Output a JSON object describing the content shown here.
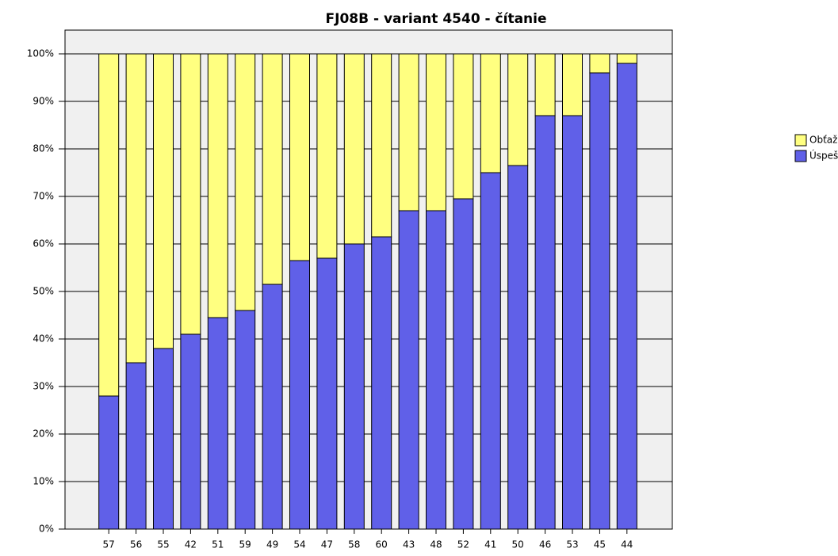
{
  "chart_data": {
    "type": "stacked_bar",
    "title": "FJ08B - variant 4540 - čítanie",
    "categories": [
      "57",
      "56",
      "55",
      "42",
      "51",
      "59",
      "49",
      "54",
      "47",
      "58",
      "60",
      "43",
      "48",
      "52",
      "41",
      "50",
      "46",
      "53",
      "45",
      "44"
    ],
    "series": [
      {
        "name": "Úspešnosť",
        "color": "#6060e8",
        "values": [
          28,
          35,
          38,
          41,
          44.5,
          46,
          51.5,
          56.5,
          57,
          60,
          61.5,
          67,
          67,
          69.5,
          75,
          76.5,
          87,
          87,
          96,
          98
        ]
      },
      {
        "name": "Obťažnosť",
        "color": "#ffff80",
        "values": [
          72,
          65,
          62,
          59,
          55.5,
          54,
          48.5,
          43.5,
          43,
          40,
          38.5,
          33,
          33,
          30.5,
          25,
          23.5,
          13,
          13,
          4,
          2
        ]
      }
    ],
    "ylim": [
      0,
      105
    ],
    "yticks": [
      {
        "value": 0,
        "label": "0%"
      },
      {
        "value": 10,
        "label": "10%"
      },
      {
        "value": 20,
        "label": "20%"
      },
      {
        "value": 30,
        "label": "30%"
      },
      {
        "value": 40,
        "label": "40%"
      },
      {
        "value": 50,
        "label": "50%"
      },
      {
        "value": 60,
        "label": "60%"
      },
      {
        "value": 70,
        "label": "70%"
      },
      {
        "value": 80,
        "label": "80%"
      },
      {
        "value": 90,
        "label": "90%"
      },
      {
        "value": 100,
        "label": "100%"
      }
    ],
    "grid": true
  }
}
